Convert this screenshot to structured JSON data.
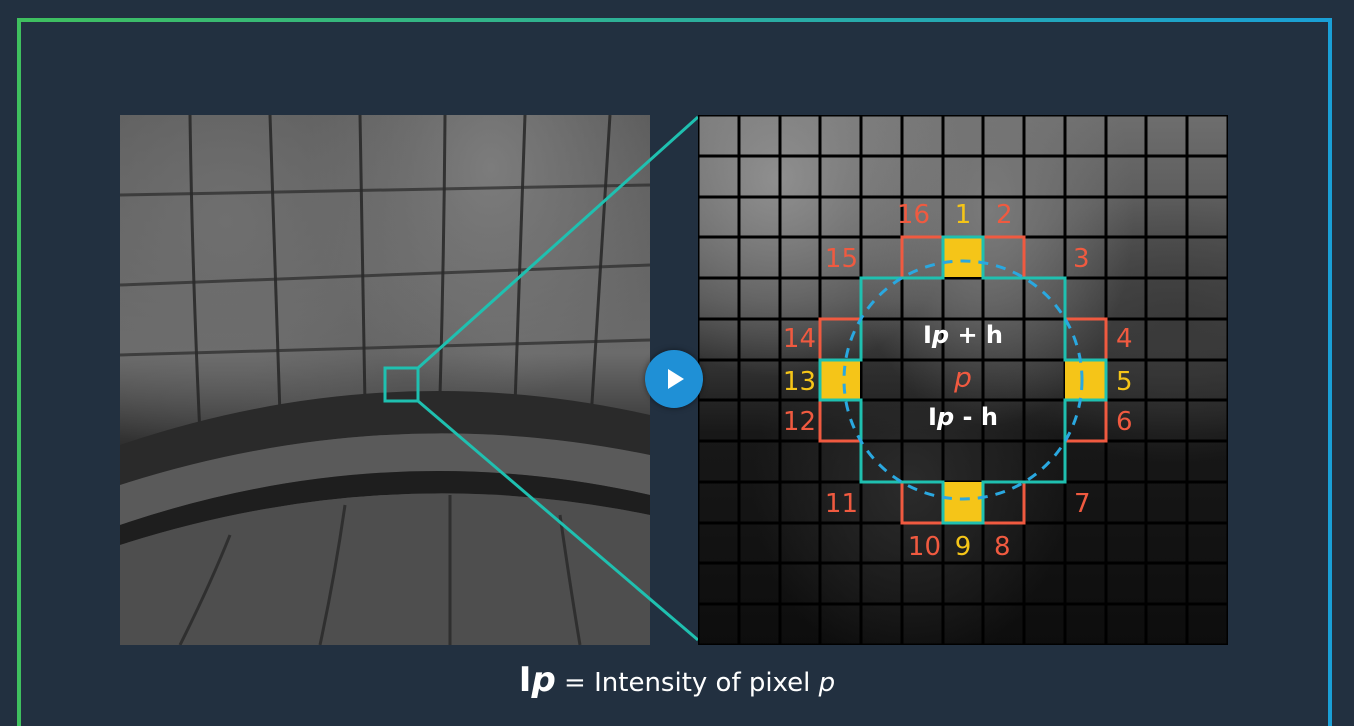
{
  "colors": {
    "background": "#223040",
    "frame_green": "#3fbf5f",
    "frame_blue": "#1a9fd6",
    "teal": "#1fc0b0",
    "orange": "#f05a40",
    "yellow": "#f5c518",
    "blue_dash": "#2aa8e0",
    "play": "#1f90d6"
  },
  "diagram": {
    "labels": {
      "n1": "1",
      "n2": "2",
      "n3": "3",
      "n4": "4",
      "n5": "5",
      "n6": "6",
      "n7": "7",
      "n8": "8",
      "n9": "9",
      "n10": "10",
      "n11": "11",
      "n12": "12",
      "n13": "13",
      "n14": "14",
      "n15": "15",
      "n16": "16"
    },
    "upper_prefix": "I",
    "upper_var": "p",
    "upper_suffix": " + h",
    "center": "p",
    "lower_prefix": "I",
    "lower_var": "p",
    "lower_suffix": " - h"
  },
  "caption": {
    "symbol": "I",
    "symbol_var": "p",
    "text": " = Intensity of pixel ",
    "var": "p"
  },
  "player": {
    "icon": "play-icon"
  }
}
